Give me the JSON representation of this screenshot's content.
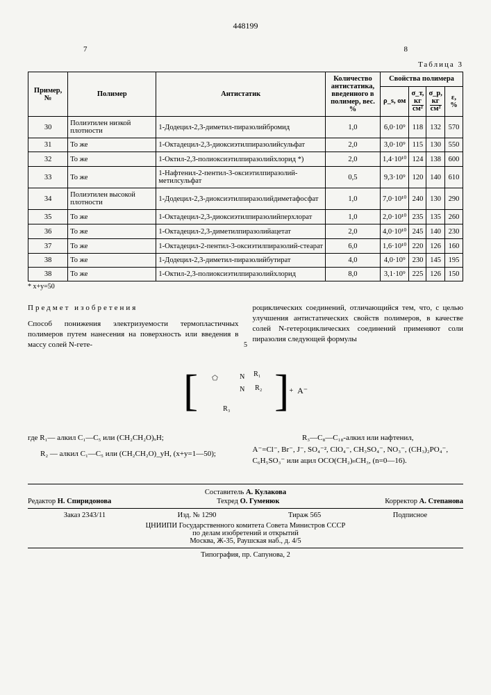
{
  "patent_number": "448199",
  "page_left": "7",
  "page_right": "8",
  "table_caption": "Таблица 3",
  "headers": {
    "c1": "Пример, №",
    "c2": "Полимер",
    "c3": "Антистатик",
    "c4": "Количество антистатика, введенного в полимер, вес. %",
    "group": "Свойства полимера",
    "c5": "ρ_s, ом",
    "c6_top": "σ_т,",
    "c6_unit1": "кг",
    "c6_unit2": "см²",
    "c7_top": "σ_р,",
    "c7_unit1": "кг",
    "c7_unit2": "см²",
    "c8": "ε, %"
  },
  "rows": [
    {
      "n": "30",
      "pol": "Полиэтилен низкой плотности",
      "anti": "1-Додецил-2,3-диметил-пиразолийбромид",
      "amt": "1,0",
      "rho": "6,0·10⁹",
      "st": "118",
      "sp": "132",
      "e": "570"
    },
    {
      "n": "31",
      "pol": "То же",
      "anti": "1-Октадецил-2,3-диоксиэтилпиразолийсульфат",
      "amt": "2,0",
      "rho": "3,0·10⁹",
      "st": "115",
      "sp": "130",
      "e": "550"
    },
    {
      "n": "32",
      "pol": "То же",
      "anti": "1-Октил-2,3-полиоксиэтилпиразолийхлорид *)",
      "amt": "2,0",
      "rho": "1,4·10¹⁰",
      "st": "124",
      "sp": "138",
      "e": "600"
    },
    {
      "n": "33",
      "pol": "То же",
      "anti": "1-Нафтенил-2-пентил-3-оксиэтилпиразолий-метилсульфат",
      "amt": "0,5",
      "rho": "9,3·10⁹",
      "st": "120",
      "sp": "140",
      "e": "610"
    },
    {
      "n": "34",
      "pol": "Полиэтилен высокой плотности",
      "anti": "1-Додецил-2,3-диоксиэтилпиразолийдиметафосфат",
      "amt": "1,0",
      "rho": "7,0·10¹⁰",
      "st": "240",
      "sp": "130",
      "e": "290"
    },
    {
      "n": "35",
      "pol": "То же",
      "anti": "1-Октадецил-2,3-диоксиэтилпиразолийперхлорат",
      "amt": "1,0",
      "rho": "2,0·10¹⁰",
      "st": "235",
      "sp": "135",
      "e": "260"
    },
    {
      "n": "36",
      "pol": "То же",
      "anti": "1-Октадецил-2,3-диметилпиразолийацетат",
      "amt": "2,0",
      "rho": "4,0·10¹⁰",
      "st": "245",
      "sp": "140",
      "e": "230"
    },
    {
      "n": "37",
      "pol": "То же",
      "anti": "1-Октадецил-2-пентил-3-оксиэтилпиразолий-стеарат",
      "amt": "6,0",
      "rho": "1,6·10¹⁰",
      "st": "220",
      "sp": "126",
      "e": "160"
    },
    {
      "n": "38",
      "pol": "То же",
      "anti": "1-Додецил-2,3-диметил-пиразолийбутират",
      "amt": "4,0",
      "rho": "4,0·10⁹",
      "st": "230",
      "sp": "145",
      "e": "195"
    },
    {
      "n": "38",
      "pol": "То же",
      "anti": "1-Октил-2,3-полиоксиэтилпиразолийхлорид",
      "amt": "8,0",
      "rho": "3,1·10⁹",
      "st": "225",
      "sp": "126",
      "e": "150"
    }
  ],
  "footnote": "* x+y=50",
  "subject_heading": "Предмет изобретения",
  "claim_left": "Способ понижения электризуемости термопластичных полимеров путем нанесения на поверхность или введения в массу солей N-гете-",
  "claim_right": "роциклических соединений, отличающийся тем, что, с целью улучшения антистатических свойств полимеров, в качестве солей N-гетероциклических соединений применяют соли пиразолия следующей формулы",
  "small5": "5",
  "formula": {
    "R1": "R₁",
    "R2": "R₂",
    "R3": "R₃",
    "N": "N",
    "N2": "N",
    "plus": "+",
    "A": "A⁻"
  },
  "defs_left_1": "где R₁— алкил C₁—C₅ или (CH₂CH₂O)ₓH;",
  "defs_left_2": "R₂ — алкил C₁—C₅ или (CH₂CH₂O)_yH, (x+y=1—50);",
  "defs_right_1": "R₃—C₈—C₁₈-алкил или нафтенил,",
  "defs_right_2": "A⁻=Cl⁻, Br⁻, J⁻, SO₄⁻², ClO₄⁻, CH₃SO₄⁻, NO₃⁻, (CH₃)₂PO₄⁻, C₆H₅SO₃⁻ или ацил OCO(CH₂)ₙCH₃, (n=0—16).",
  "credits": {
    "compiler_lbl": "Составитель",
    "compiler": "А. Кулакова",
    "editor_lbl": "Редактор",
    "editor": "Н. Спиридонова",
    "tech_lbl": "Техред",
    "tech": "О. Гуменюк",
    "corr_lbl": "Корректор",
    "corr": "А. Степанова",
    "order": "Заказ 2343/11",
    "izd": "Изд. № 1290",
    "tir": "Тираж 565",
    "sub": "Подписное",
    "org1": "ЦНИИПИ Государственного комитета Совета Министров СССР",
    "org2": "по делам изобретений и открытий",
    "addr": "Москва, Ж-35, Раушская наб., д. 4/5",
    "typ": "Типография, пр. Сапунова, 2"
  }
}
